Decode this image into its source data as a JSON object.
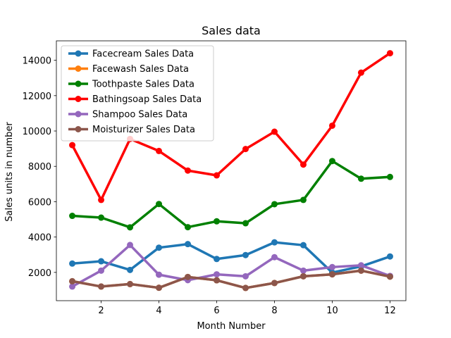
{
  "chart_data": {
    "type": "line",
    "title": "Sales data",
    "xlabel": "Month Number",
    "ylabel": "Sales units in number",
    "x": [
      1,
      2,
      3,
      4,
      5,
      6,
      7,
      8,
      9,
      10,
      11,
      12
    ],
    "xlim": [
      0.45,
      12.55
    ],
    "ylim": [
      400,
      15100
    ],
    "xticks": [
      2,
      4,
      6,
      8,
      10,
      12
    ],
    "yticks": [
      2000,
      4000,
      6000,
      8000,
      10000,
      12000,
      14000
    ],
    "grid": false,
    "legend_position": "top-left",
    "series": [
      {
        "name": "Facecream Sales Data",
        "color": "#1f77b4",
        "values": [
          2500,
          2630,
          2140,
          3400,
          3600,
          2760,
          2980,
          3700,
          3540,
          1990,
          2340,
          2900
        ]
      },
      {
        "name": "Facewash Sales Data",
        "color": "#ff7f0e",
        "values": [
          1500,
          1200,
          1340,
          1130,
          1740,
          1555,
          1120,
          1400,
          1780,
          1890,
          2100,
          1760
        ]
      },
      {
        "name": "Toothpaste Sales Data",
        "color": "#008000",
        "values": [
          5200,
          5100,
          4550,
          5870,
          4560,
          4890,
          4780,
          5860,
          6100,
          8300,
          7300,
          7400
        ]
      },
      {
        "name": "Bathingsoap Sales Data",
        "color": "#ff0000",
        "values": [
          9200,
          6100,
          9550,
          8870,
          7760,
          7490,
          8980,
          9960,
          8100,
          10300,
          13300,
          14400
        ]
      },
      {
        "name": "Shampoo Sales Data",
        "color": "#9467bd",
        "values": [
          1200,
          2100,
          3550,
          1870,
          1560,
          1890,
          1780,
          2860,
          2100,
          2300,
          2400,
          1800
        ]
      },
      {
        "name": "Moisturizer Sales Data",
        "color": "#8c564b",
        "values": [
          1500,
          1200,
          1340,
          1130,
          1740,
          1555,
          1120,
          1400,
          1780,
          1890,
          2100,
          1760
        ]
      }
    ]
  }
}
